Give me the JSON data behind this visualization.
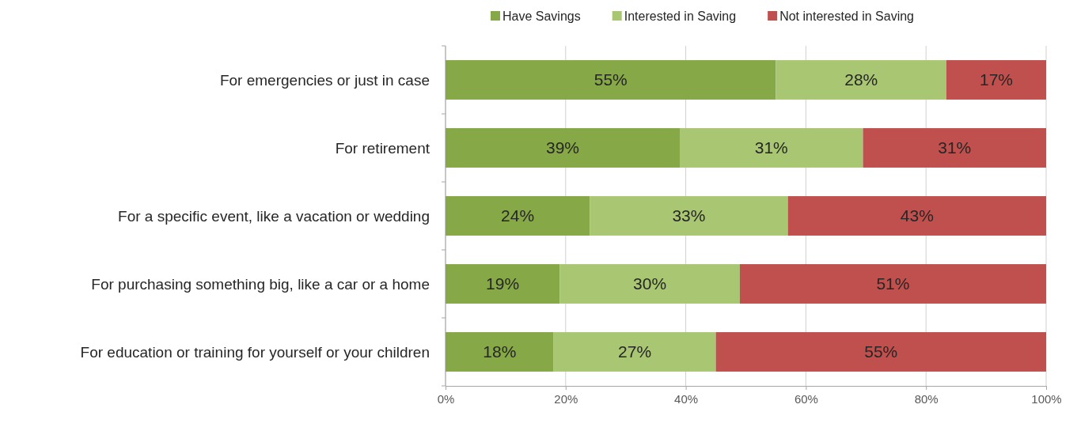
{
  "chart_data": {
    "type": "bar",
    "orientation": "horizontal",
    "stacked": true,
    "categories": [
      "For emergencies or just in case",
      "For retirement",
      "For a specific event, like a vacation or wedding",
      "For purchasing something big, like a car or a home",
      "For education or training for yourself or your children"
    ],
    "series": [
      {
        "name": "Have Savings",
        "color": "#86a846",
        "values": [
          55,
          39,
          24,
          19,
          18
        ],
        "value_labels": [
          "55%",
          "39%",
          "24%",
          "19%",
          "18%"
        ]
      },
      {
        "name": "Interested in Saving",
        "color": "#a9c672",
        "values": [
          28.4,
          30.5,
          33,
          30,
          27
        ],
        "value_labels": [
          "28%",
          "31%",
          "33%",
          "30%",
          "27%"
        ]
      },
      {
        "name": "Not interested in Saving",
        "color": "#c0504d",
        "values": [
          16.6,
          30.5,
          43,
          51,
          55
        ],
        "value_labels": [
          "17%",
          "31%",
          "43%",
          "51%",
          "55%"
        ]
      }
    ],
    "xlim": [
      0,
      100
    ],
    "xticks": [
      {
        "value": 0,
        "label": "0%"
      },
      {
        "value": 20,
        "label": "20%"
      },
      {
        "value": 40,
        "label": "40%"
      },
      {
        "value": 60,
        "label": "60%"
      },
      {
        "value": 80,
        "label": "80%"
      },
      {
        "value": 100,
        "label": "100%"
      }
    ],
    "grid": "x",
    "legend": "top"
  }
}
